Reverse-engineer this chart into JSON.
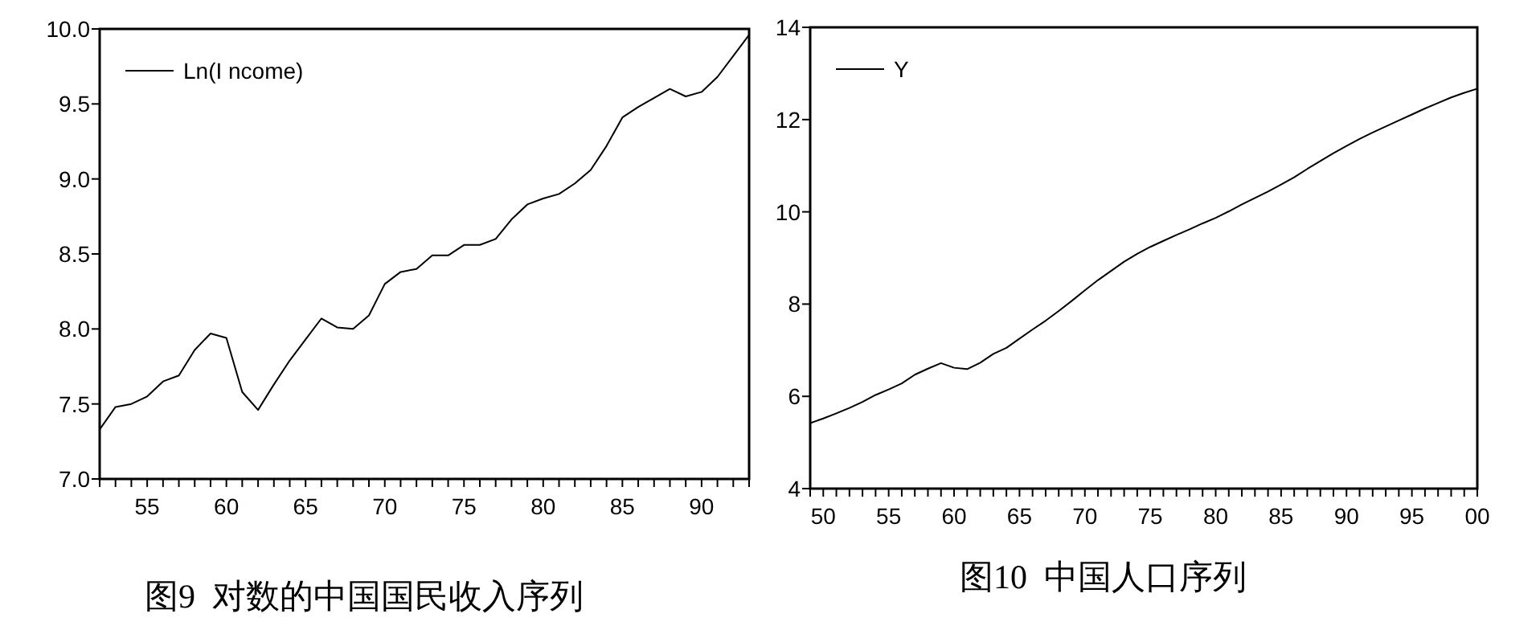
{
  "chart_data": [
    {
      "type": "line",
      "x": [
        52,
        53,
        54,
        55,
        56,
        57,
        58,
        59,
        60,
        61,
        62,
        63,
        64,
        65,
        66,
        67,
        68,
        69,
        70,
        71,
        72,
        73,
        74,
        75,
        76,
        77,
        78,
        79,
        80,
        81,
        82,
        83,
        84,
        85,
        86,
        87,
        88,
        89,
        90,
        91,
        92,
        93
      ],
      "series": [
        {
          "name": "Ln(I ncome)",
          "color": "#000000",
          "values": [
            7.33,
            7.48,
            7.5,
            7.55,
            7.65,
            7.69,
            7.86,
            7.97,
            7.94,
            7.58,
            7.46,
            7.63,
            7.79,
            7.93,
            8.07,
            8.01,
            8.0,
            8.09,
            8.3,
            8.38,
            8.4,
            8.49,
            8.49,
            8.56,
            8.56,
            8.6,
            8.73,
            8.83,
            8.87,
            8.9,
            8.97,
            9.06,
            9.22,
            9.41,
            9.48,
            9.54,
            9.6,
            9.55,
            9.58,
            9.68,
            9.82,
            9.96
          ]
        }
      ],
      "xlim": [
        52,
        93
      ],
      "xticks": [
        {
          "value": 52,
          "label": null
        },
        {
          "value": 53,
          "label": null
        },
        {
          "value": 54,
          "label": null
        },
        55,
        {
          "value": 56,
          "label": null
        },
        {
          "value": 57,
          "label": null
        },
        {
          "value": 58,
          "label": null
        },
        {
          "value": 59,
          "label": null
        },
        60,
        {
          "value": 61,
          "label": null
        },
        {
          "value": 62,
          "label": null
        },
        {
          "value": 63,
          "label": null
        },
        {
          "value": 64,
          "label": null
        },
        65,
        {
          "value": 66,
          "label": null
        },
        {
          "value": 67,
          "label": null
        },
        {
          "value": 68,
          "label": null
        },
        {
          "value": 69,
          "label": null
        },
        70,
        {
          "value": 71,
          "label": null
        },
        {
          "value": 72,
          "label": null
        },
        {
          "value": 73,
          "label": null
        },
        {
          "value": 74,
          "label": null
        },
        75,
        {
          "value": 76,
          "label": null
        },
        {
          "value": 77,
          "label": null
        },
        {
          "value": 78,
          "label": null
        },
        {
          "value": 79,
          "label": null
        },
        80,
        {
          "value": 81,
          "label": null
        },
        {
          "value": 82,
          "label": null
        },
        {
          "value": 83,
          "label": null
        },
        {
          "value": 84,
          "label": null
        },
        85,
        {
          "value": 86,
          "label": null
        },
        {
          "value": 87,
          "label": null
        },
        {
          "value": 88,
          "label": null
        },
        {
          "value": 89,
          "label": null
        },
        90,
        {
          "value": 91,
          "label": null
        },
        {
          "value": 92,
          "label": null
        },
        {
          "value": 93,
          "label": null
        }
      ],
      "ylim": [
        7.0,
        10.0
      ],
      "yticks": [
        {
          "value": 7,
          "label": "7.0"
        },
        {
          "value": 7.5,
          "label": "7.5"
        },
        {
          "value": 8,
          "label": "8.0"
        },
        {
          "value": 8.5,
          "label": "8.5"
        },
        {
          "value": 9,
          "label": "9.0"
        },
        {
          "value": 9.5,
          "label": "9.5"
        },
        {
          "value": 10,
          "label": "10.0"
        }
      ],
      "legend": "top left",
      "grid": false,
      "annotations": [
        "图9  对数的中国国民收入序列"
      ]
    },
    {
      "type": "line",
      "x": [
        "1949",
        "1950",
        "1951",
        "1952",
        "1953",
        "1954",
        "1955",
        "1956",
        "1957",
        "1958",
        "1959",
        "1960",
        "1961",
        "1962",
        "1963",
        "1964",
        "1965",
        "1966",
        "1967",
        "1968",
        "1969",
        "1970",
        "1971",
        "1972",
        "1973",
        "1974",
        "1975",
        "1976",
        "1977",
        "1978",
        "1979",
        "1980",
        "1981",
        "1982",
        "1983",
        "1984",
        "1985",
        "1986",
        "1987",
        "1988",
        "1989",
        "1990",
        "1991",
        "1992",
        "1993",
        "1994",
        "1995",
        "1996",
        "1997",
        "1998",
        "1999",
        "2000"
      ],
      "series": [
        {
          "name": "Y",
          "color": "#000000",
          "values": [
            5.42,
            5.52,
            5.63,
            5.75,
            5.88,
            6.03,
            6.15,
            6.28,
            6.47,
            6.6,
            6.72,
            6.62,
            6.59,
            6.73,
            6.92,
            7.05,
            7.25,
            7.45,
            7.64,
            7.85,
            8.07,
            8.3,
            8.52,
            8.72,
            8.92,
            9.09,
            9.24,
            9.37,
            9.5,
            9.62,
            9.75,
            9.87,
            10.01,
            10.16,
            10.3,
            10.44,
            10.59,
            10.75,
            10.93,
            11.1,
            11.27,
            11.43,
            11.58,
            11.72,
            11.85,
            11.98,
            12.11,
            12.24,
            12.36,
            12.48,
            12.58,
            12.67
          ]
        }
      ],
      "xlim": [
        "1949",
        "2000"
      ],
      "xticks": [
        {
          "value": "1949",
          "label": null
        },
        {
          "value": "1950",
          "label": "50"
        },
        {
          "value": "1951",
          "label": null
        },
        {
          "value": "1952",
          "label": null
        },
        {
          "value": "1953",
          "label": null
        },
        {
          "value": "1954",
          "label": null
        },
        {
          "value": "1955",
          "label": "55"
        },
        {
          "value": "1956",
          "label": null
        },
        {
          "value": "1957",
          "label": null
        },
        {
          "value": "1958",
          "label": null
        },
        {
          "value": "1959",
          "label": null
        },
        {
          "value": "1960",
          "label": "60"
        },
        {
          "value": "1961",
          "label": null
        },
        {
          "value": "1962",
          "label": null
        },
        {
          "value": "1963",
          "label": null
        },
        {
          "value": "1964",
          "label": null
        },
        {
          "value": "1965",
          "label": "65"
        },
        {
          "value": "1966",
          "label": null
        },
        {
          "value": "1967",
          "label": null
        },
        {
          "value": "1968",
          "label": null
        },
        {
          "value": "1969",
          "label": null
        },
        {
          "value": "1970",
          "label": "70"
        },
        {
          "value": "1971",
          "label": null
        },
        {
          "value": "1972",
          "label": null
        },
        {
          "value": "1973",
          "label": null
        },
        {
          "value": "1974",
          "label": null
        },
        {
          "value": "1975",
          "label": "75"
        },
        {
          "value": "1976",
          "label": null
        },
        {
          "value": "1977",
          "label": null
        },
        {
          "value": "1978",
          "label": null
        },
        {
          "value": "1979",
          "label": null
        },
        {
          "value": "1980",
          "label": "80"
        },
        {
          "value": "1981",
          "label": null
        },
        {
          "value": "1982",
          "label": null
        },
        {
          "value": "1983",
          "label": null
        },
        {
          "value": "1984",
          "label": null
        },
        {
          "value": "1985",
          "label": "85"
        },
        {
          "value": "1986",
          "label": null
        },
        {
          "value": "1987",
          "label": null
        },
        {
          "value": "1988",
          "label": null
        },
        {
          "value": "1989",
          "label": null
        },
        {
          "value": "1990",
          "label": "90"
        },
        {
          "value": "1991",
          "label": null
        },
        {
          "value": "1992",
          "label": null
        },
        {
          "value": "1993",
          "label": null
        },
        {
          "value": "1994",
          "label": null
        },
        {
          "value": "1995",
          "label": "95"
        },
        {
          "value": "1996",
          "label": null
        },
        {
          "value": "1997",
          "label": null
        },
        {
          "value": "1998",
          "label": null
        },
        {
          "value": "1999",
          "label": null
        },
        {
          "value": "2000",
          "label": "00"
        }
      ],
      "ylim": [
        4,
        14
      ],
      "yticks": [
        4,
        6,
        8,
        10,
        12,
        14
      ],
      "legend": "top left",
      "grid": false,
      "annotations": [
        "图10  中国人口序列"
      ]
    }
  ]
}
